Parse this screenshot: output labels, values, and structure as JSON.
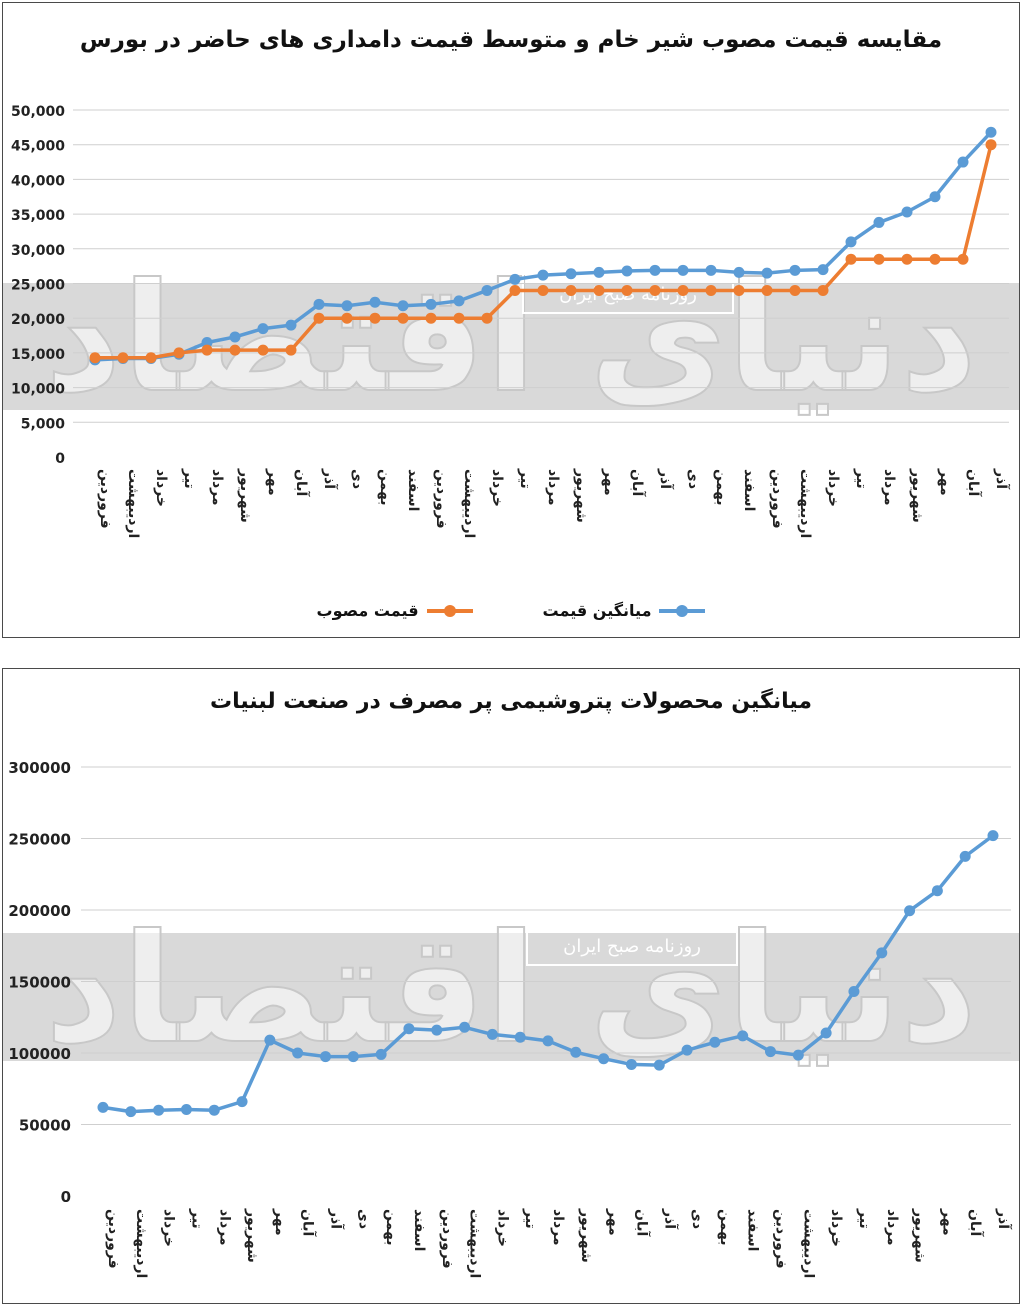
{
  "chart_data": [
    {
      "type": "line",
      "title": "مقایسه قیمت مصوب شیر خام و متوسط قیمت دامداری های حاضر در بورس",
      "ylim": [
        0,
        50000
      ],
      "yticks": [
        "0",
        "5,000",
        "10,000",
        "15,000",
        "20,000",
        "25,000",
        "30,000",
        "35,000",
        "40,000",
        "45,000",
        "50,000"
      ],
      "grid": true,
      "legend_position": "bottom",
      "categories": [
        "فروردین",
        "اردیبهشت",
        "خرداد",
        "تیر",
        "مرداد",
        "شهریور",
        "مهر",
        "آبان",
        "آذر",
        "دی",
        "بهمن",
        "اسفند",
        "فروردین",
        "اردیبهشت",
        "خرداد",
        "تیر",
        "مرداد",
        "شهریور",
        "مهر",
        "آبان",
        "آذر",
        "دی",
        "بهمن",
        "اسفند",
        "فروردین",
        "اردیبهشت",
        "خرداد",
        "تیر",
        "مرداد",
        "شهریور",
        "مهر",
        "آبان",
        "آذر"
      ],
      "series": [
        {
          "name": "میانگین قیمت",
          "color": "#5b9bd5",
          "values": [
            14000,
            14200,
            14200,
            14800,
            16500,
            17300,
            18500,
            19000,
            22000,
            21800,
            22300,
            21800,
            22000,
            22500,
            24000,
            25600,
            26200,
            26400,
            26600,
            26800,
            26900,
            26900,
            26900,
            26600,
            26500,
            26900,
            27000,
            31000,
            33800,
            35300,
            37500,
            42500,
            46800
          ]
        },
        {
          "name": "قیمت مصوب",
          "color": "#ed7d31",
          "values": [
            14300,
            14300,
            14300,
            15000,
            15400,
            15400,
            15400,
            15400,
            20000,
            20000,
            20000,
            20000,
            20000,
            20000,
            20000,
            24000,
            24000,
            24000,
            24000,
            24000,
            24000,
            24000,
            24000,
            24000,
            24000,
            24000,
            24000,
            28500,
            28500,
            28500,
            28500,
            28500,
            45000
          ]
        }
      ]
    },
    {
      "type": "line",
      "title": "میانگین محصولات پتروشیمی پر مصرف در صنعت لبنیات",
      "ylim": [
        0,
        300000
      ],
      "yticks": [
        "0",
        "50000",
        "100000",
        "150000",
        "200000",
        "250000",
        "300000"
      ],
      "grid": true,
      "categories": [
        "فروردین",
        "اردیبهشت",
        "خرداد",
        "تیر",
        "مرداد",
        "شهریور",
        "مهر",
        "آبان",
        "آذر",
        "دی",
        "بهمن",
        "اسفند",
        "فروردین",
        "اردیبهشت",
        "خرداد",
        "تیر",
        "مرداد",
        "شهریور",
        "مهر",
        "آبان",
        "آذر",
        "دی",
        "بهمن",
        "اسفند",
        "فروردین",
        "اردیبهشت",
        "خرداد",
        "تیر",
        "مرداد",
        "شهریور",
        "مهر",
        "آبان",
        "آذر"
      ],
      "series": [
        {
          "name": "میانگین",
          "color": "#5b9bd5",
          "values": [
            62000,
            59000,
            60000,
            60500,
            60000,
            66000,
            109000,
            100000,
            97500,
            97500,
            99000,
            117000,
            116000,
            118000,
            113000,
            111000,
            108500,
            100500,
            96000,
            92000,
            91500,
            102000,
            107500,
            112000,
            101000,
            98500,
            114000,
            143000,
            170000,
            199500,
            213500,
            237500,
            252000
          ]
        }
      ]
    }
  ],
  "legend": {
    "blue_label": "میانگین قیمت",
    "orange_label": "قیمت مصوب"
  },
  "watermark": {
    "brand": "دنیای اقتصاد",
    "newspaper": "روزنامه صبح ایران"
  }
}
